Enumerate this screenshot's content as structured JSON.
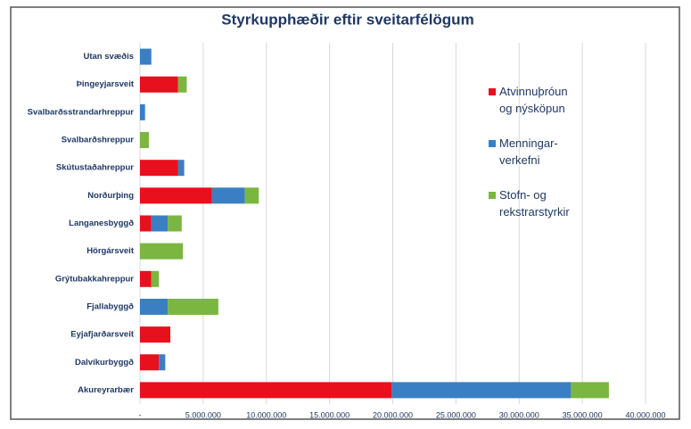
{
  "chart_data": {
    "type": "bar",
    "orientation": "horizontal",
    "stacked": true,
    "title": "Styrkupphæðir eftir sveitarfélögum",
    "categories": [
      "Utan svæðis",
      "Þingeyjarsveit",
      "Svalbarðsstrandarhreppur",
      "Svalbarðshreppur",
      "Skútustaðahreppur",
      "Norðurþing",
      "Langanesbyggð",
      "Hörgársveit",
      "Grýtubakkahreppur",
      "Fjallabyggð",
      "Eyjafjarðarsveit",
      "Dalvíkurbyggð",
      "Akureyrarbær"
    ],
    "series": [
      {
        "name": "Atvinnuþróun\nog nýsköpun",
        "color": "#e8101d",
        "values": [
          0,
          3000000,
          0,
          0,
          3000000,
          5700000,
          900000,
          0,
          900000,
          0,
          2400000,
          1500000,
          19900000
        ]
      },
      {
        "name": "Menningar-\nverkefni",
        "color": "#3a7fc4",
        "values": [
          900000,
          0,
          400000,
          0,
          500000,
          2600000,
          1300000,
          0,
          0,
          2200000,
          0,
          500000,
          14200000
        ]
      },
      {
        "name": "Stofn- og\nrekstrarstyrkir",
        "color": "#7ab640",
        "values": [
          0,
          700000,
          0,
          700000,
          0,
          1100000,
          1100000,
          3400000,
          600000,
          4000000,
          0,
          0,
          3000000
        ]
      }
    ],
    "xlim": [
      0,
      40000000
    ],
    "xticks": [
      {
        "value": 0,
        "label": "-"
      },
      {
        "value": 5000000,
        "label": "5.000.000"
      },
      {
        "value": 10000000,
        "label": "10.000.000"
      },
      {
        "value": 15000000,
        "label": "15.000.000"
      },
      {
        "value": 20000000,
        "label": "20.000.000"
      },
      {
        "value": 25000000,
        "label": "25.000.000"
      },
      {
        "value": 30000000,
        "label": "30.000.000"
      },
      {
        "value": 35000000,
        "label": "35.000.000"
      },
      {
        "value": 40000000,
        "label": "40.000.000"
      }
    ],
    "grid": true,
    "legend": "right"
  }
}
